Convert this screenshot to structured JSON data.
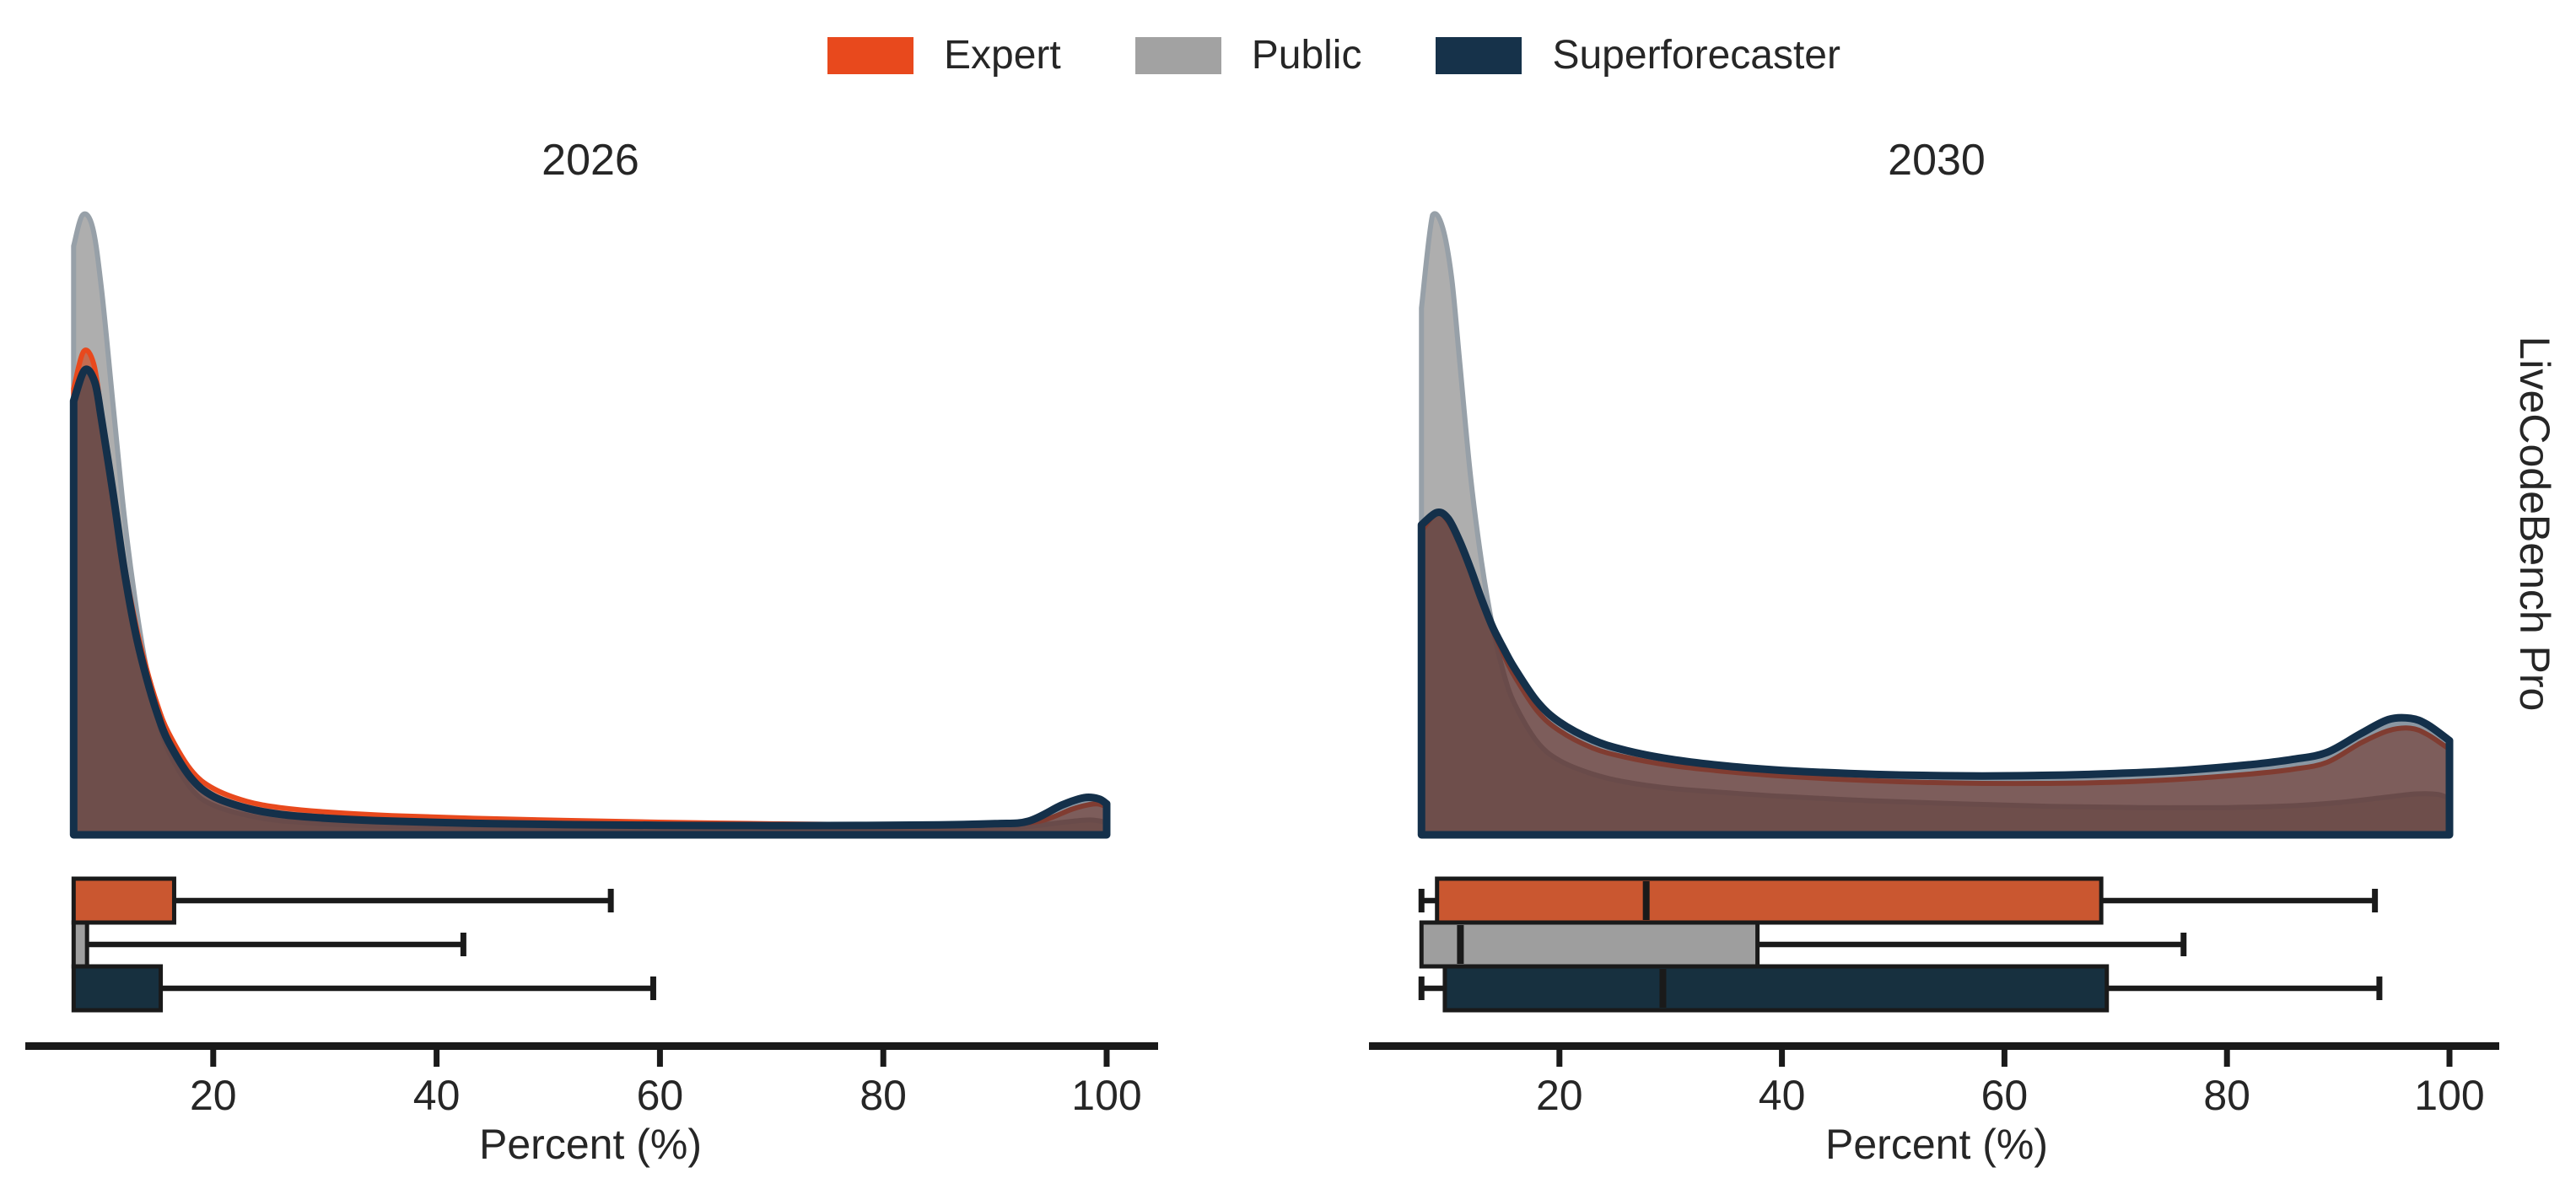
{
  "colors": {
    "text": "#262626",
    "axis": "#1A1A1A",
    "background": "#FFFFFF"
  },
  "chart_data": {
    "type": "kde+boxplot",
    "facets": {
      "row_label": "LiveCodeBench Pro"
    },
    "xlabel": "Percent (%)",
    "x_ticks": [
      20,
      40,
      60,
      80,
      100
    ],
    "x_axis_range": [
      3,
      104.5
    ],
    "x_data_range": [
      7.5,
      100
    ],
    "legend": [
      {
        "label": "Expert",
        "color": "#E8491D"
      },
      {
        "label": "Public",
        "color": "#A2A2A2"
      },
      {
        "label": "Superforecaster",
        "color": "#16324A"
      }
    ],
    "groups": [
      {
        "name": "Expert",
        "line_color": "#E8491D",
        "fill_color": "rgba(210,68,25,0.62)",
        "box_fill": "#CA5730"
      },
      {
        "name": "Public",
        "line_color": "#97A0A8",
        "fill_color": "rgba(108,108,108,0.55)",
        "box_fill": "#9E9E9E"
      },
      {
        "name": "Superforecaster",
        "line_color": "#14304A",
        "fill_color": "rgba(23,48,70,0.5)",
        "box_fill": "#17303F"
      }
    ],
    "panels": [
      {
        "title": "2026",
        "boxplots": [
          {
            "group": "Expert",
            "whisker_low": 7.5,
            "q1": 7.5,
            "median": 7.5,
            "q3": 16.5,
            "whisker_high": 55.6
          },
          {
            "group": "Public",
            "whisker_low": 7.5,
            "q1": 7.5,
            "median": 7.5,
            "q3": 8.7,
            "whisker_high": 42.4
          },
          {
            "group": "Superforecaster",
            "whisker_low": 7.5,
            "q1": 7.5,
            "median": 7.5,
            "q3": 15.3,
            "whisker_high": 59.4
          }
        ],
        "densities": [
          {
            "group": "Public",
            "points": [
              [
                7.5,
                0.95
              ],
              [
                8.3,
                1.0
              ],
              [
                9.2,
                0.98
              ],
              [
                10,
                0.88
              ],
              [
                11,
                0.7
              ],
              [
                12,
                0.52
              ],
              [
                13,
                0.38
              ],
              [
                14,
                0.27
              ],
              [
                15,
                0.19
              ],
              [
                16,
                0.135
              ],
              [
                18,
                0.075
              ],
              [
                20,
                0.048
              ],
              [
                24,
                0.028
              ],
              [
                28,
                0.02
              ],
              [
                35,
                0.014
              ],
              [
                45,
                0.011
              ],
              [
                60,
                0.009
              ],
              [
                75,
                0.008
              ],
              [
                85,
                0.009
              ],
              [
                92,
                0.012
              ],
              [
                96,
                0.02
              ],
              [
                98.5,
                0.024
              ],
              [
                100,
                0.02
              ]
            ]
          },
          {
            "group": "Expert",
            "points": [
              [
                7.5,
                0.72
              ],
              [
                8.4,
                0.78
              ],
              [
                9.3,
                0.76
              ],
              [
                10,
                0.68
              ],
              [
                11,
                0.56
              ],
              [
                12,
                0.44
              ],
              [
                13,
                0.345
              ],
              [
                14,
                0.27
              ],
              [
                15,
                0.21
              ],
              [
                16,
                0.165
              ],
              [
                18,
                0.105
              ],
              [
                20,
                0.075
              ],
              [
                23,
                0.054
              ],
              [
                26,
                0.044
              ],
              [
                30,
                0.037
              ],
              [
                36,
                0.031
              ],
              [
                45,
                0.026
              ],
              [
                55,
                0.022
              ],
              [
                65,
                0.019
              ],
              [
                75,
                0.017
              ],
              [
                85,
                0.016
              ],
              [
                90,
                0.017
              ],
              [
                94,
                0.022
              ],
              [
                97,
                0.042
              ],
              [
                99,
                0.05
              ],
              [
                100,
                0.045
              ]
            ]
          },
          {
            "group": "Superforecaster",
            "points": [
              [
                7.5,
                0.7
              ],
              [
                8.5,
                0.75
              ],
              [
                9.4,
                0.73
              ],
              [
                10,
                0.67
              ],
              [
                11,
                0.555
              ],
              [
                12,
                0.43
              ],
              [
                13,
                0.33
              ],
              [
                14,
                0.255
              ],
              [
                15,
                0.195
              ],
              [
                16,
                0.15
              ],
              [
                18,
                0.092
              ],
              [
                20,
                0.062
              ],
              [
                23,
                0.043
              ],
              [
                26,
                0.033
              ],
              [
                30,
                0.027
              ],
              [
                36,
                0.022
              ],
              [
                45,
                0.018
              ],
              [
                55,
                0.016
              ],
              [
                65,
                0.015
              ],
              [
                75,
                0.015
              ],
              [
                85,
                0.016
              ],
              [
                90,
                0.018
              ],
              [
                93,
                0.022
              ],
              [
                96,
                0.048
              ],
              [
                98,
                0.06
              ],
              [
                99.3,
                0.058
              ],
              [
                100,
                0.05
              ]
            ]
          }
        ]
      },
      {
        "title": "2030",
        "boxplots": [
          {
            "group": "Expert",
            "whisker_low": 7.6,
            "q1": 9.0,
            "median": 27.8,
            "q3": 68.7,
            "whisker_high": 93.3
          },
          {
            "group": "Public",
            "whisker_low": 7.6,
            "q1": 7.6,
            "median": 11.1,
            "q3": 37.8,
            "whisker_high": 76.1
          },
          {
            "group": "Superforecaster",
            "whisker_low": 7.6,
            "q1": 9.7,
            "median": 29.3,
            "q3": 69.2,
            "whisker_high": 93.7
          }
        ],
        "densities": [
          {
            "group": "Public",
            "points": [
              [
                7.6,
                0.85
              ],
              [
                8.6,
                1.0
              ],
              [
                9.5,
                0.98
              ],
              [
                10.3,
                0.9
              ],
              [
                11,
                0.77
              ],
              [
                12,
                0.58
              ],
              [
                13,
                0.44
              ],
              [
                14,
                0.335
              ],
              [
                15,
                0.26
              ],
              [
                16,
                0.21
              ],
              [
                18,
                0.15
              ],
              [
                20,
                0.12
              ],
              [
                23,
                0.098
              ],
              [
                26,
                0.085
              ],
              [
                30,
                0.075
              ],
              [
                35,
                0.068
              ],
              [
                40,
                0.062
              ],
              [
                48,
                0.055
              ],
              [
                56,
                0.05
              ],
              [
                64,
                0.046
              ],
              [
                72,
                0.044
              ],
              [
                80,
                0.044
              ],
              [
                86,
                0.047
              ],
              [
                90,
                0.052
              ],
              [
                94,
                0.06
              ],
              [
                97,
                0.066
              ],
              [
                99,
                0.065
              ],
              [
                100,
                0.058
              ]
            ]
          },
          {
            "group": "Expert",
            "points": [
              [
                7.6,
                0.49
              ],
              [
                9,
                0.52
              ],
              [
                10,
                0.505
              ],
              [
                11,
                0.47
              ],
              [
                12,
                0.425
              ],
              [
                13,
                0.375
              ],
              [
                14,
                0.33
              ],
              [
                15,
                0.29
              ],
              [
                16,
                0.255
              ],
              [
                18,
                0.2
              ],
              [
                20,
                0.168
              ],
              [
                23,
                0.14
              ],
              [
                26,
                0.125
              ],
              [
                30,
                0.112
              ],
              [
                35,
                0.102
              ],
              [
                40,
                0.095
              ],
              [
                46,
                0.089
              ],
              [
                52,
                0.085
              ],
              [
                58,
                0.083
              ],
              [
                64,
                0.083
              ],
              [
                70,
                0.085
              ],
              [
                76,
                0.09
              ],
              [
                82,
                0.098
              ],
              [
                86,
                0.106
              ],
              [
                89,
                0.117
              ],
              [
                92,
                0.148
              ],
              [
                94.5,
                0.168
              ],
              [
                96.5,
                0.172
              ],
              [
                98,
                0.162
              ],
              [
                100,
                0.138
              ]
            ]
          },
          {
            "group": "Superforecaster",
            "points": [
              [
                7.6,
                0.5
              ],
              [
                9,
                0.52
              ],
              [
                10,
                0.51
              ],
              [
                11,
                0.475
              ],
              [
                12,
                0.43
              ],
              [
                13,
                0.38
              ],
              [
                14,
                0.335
              ],
              [
                15,
                0.3
              ],
              [
                16,
                0.268
              ],
              [
                18,
                0.215
              ],
              [
                20,
                0.182
              ],
              [
                23,
                0.153
              ],
              [
                26,
                0.136
              ],
              [
                30,
                0.122
              ],
              [
                35,
                0.111
              ],
              [
                40,
                0.104
              ],
              [
                46,
                0.099
              ],
              [
                52,
                0.096
              ],
              [
                58,
                0.095
              ],
              [
                64,
                0.096
              ],
              [
                70,
                0.099
              ],
              [
                76,
                0.104
              ],
              [
                82,
                0.113
              ],
              [
                86,
                0.122
              ],
              [
                89,
                0.133
              ],
              [
                92,
                0.163
              ],
              [
                94.5,
                0.186
              ],
              [
                96.5,
                0.188
              ],
              [
                98,
                0.178
              ],
              [
                100,
                0.152
              ]
            ]
          }
        ]
      }
    ]
  }
}
